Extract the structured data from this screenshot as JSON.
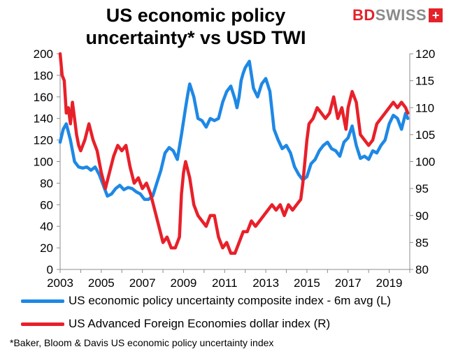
{
  "header": {
    "title_line1": "US economic policy",
    "title_line2": "uncertainty* vs USD TWI"
  },
  "logo": {
    "part1": "BD",
    "part2": "SWISS",
    "badge": "+"
  },
  "colors": {
    "blue": "#1e88e5",
    "red": "#e8202a"
  },
  "footnote": "*Baker, Bloom & Davis US economic policy uncertainty index",
  "chart_data": {
    "type": "line",
    "x_ticks": [
      "2003",
      "2005",
      "2007",
      "2009",
      "2011",
      "2013",
      "2015",
      "2017",
      "2019"
    ],
    "xlim": [
      2003,
      2020
    ],
    "left_axis": {
      "ticks": [
        0,
        20,
        40,
        60,
        80,
        100,
        120,
        140,
        160,
        180,
        200
      ],
      "ylim": [
        0,
        200
      ]
    },
    "right_axis": {
      "ticks": [
        80,
        85,
        90,
        95,
        100,
        105,
        110,
        115,
        120
      ],
      "ylim": [
        80,
        120
      ]
    },
    "grid": false,
    "legend_position": "bottom",
    "series": [
      {
        "name": "US economic policy uncertainty composite index - 6m avg (L)",
        "axis": "left",
        "color": "#1e88e5",
        "x": [
          2003.0,
          2003.15,
          2003.3,
          2003.5,
          2003.7,
          2003.9,
          2004.1,
          2004.3,
          2004.5,
          2004.7,
          2004.9,
          2005.1,
          2005.3,
          2005.5,
          2005.7,
          2005.9,
          2006.1,
          2006.3,
          2006.5,
          2006.7,
          2006.9,
          2007.1,
          2007.3,
          2007.5,
          2007.7,
          2007.9,
          2008.1,
          2008.3,
          2008.5,
          2008.7,
          2008.9,
          2009.1,
          2009.2,
          2009.3,
          2009.5,
          2009.7,
          2009.9,
          2010.1,
          2010.3,
          2010.5,
          2010.7,
          2010.9,
          2011.1,
          2011.3,
          2011.5,
          2011.6,
          2011.7,
          2011.8,
          2011.9,
          2012.0,
          2012.2,
          2012.4,
          2012.6,
          2012.8,
          2013.0,
          2013.2,
          2013.4,
          2013.6,
          2013.8,
          2014.0,
          2014.2,
          2014.4,
          2014.6,
          2014.8,
          2015.0,
          2015.2,
          2015.4,
          2015.6,
          2015.8,
          2016.0,
          2016.2,
          2016.4,
          2016.6,
          2016.8,
          2017.0,
          2017.2,
          2017.4,
          2017.6,
          2017.8,
          2018.0,
          2018.2,
          2018.4,
          2018.6,
          2018.8,
          2019.0,
          2019.2,
          2019.4,
          2019.6,
          2019.8,
          2019.9
        ],
        "values": [
          118,
          130,
          135,
          120,
          100,
          95,
          94,
          95,
          92,
          95,
          88,
          78,
          68,
          70,
          75,
          78,
          74,
          76,
          75,
          72,
          70,
          65,
          65,
          68,
          80,
          92,
          108,
          113,
          110,
          102,
          125,
          150,
          162,
          172,
          160,
          140,
          138,
          132,
          140,
          138,
          140,
          155,
          165,
          170,
          158,
          150,
          160,
          175,
          182,
          187,
          193,
          168,
          160,
          172,
          177,
          165,
          130,
          120,
          112,
          115,
          108,
          95,
          88,
          83,
          86,
          98,
          102,
          110,
          115,
          118,
          112,
          110,
          105,
          118,
          122,
          133,
          115,
          103,
          105,
          102,
          110,
          108,
          115,
          120,
          135,
          143,
          140,
          130,
          145,
          140
        ]
      },
      {
        "name": "US Advanced Foreign Economies dollar index (R)",
        "axis": "right",
        "color": "#e8202a",
        "x": [
          2003.0,
          2003.1,
          2003.2,
          2003.3,
          2003.4,
          2003.5,
          2003.6,
          2003.7,
          2003.8,
          2003.9,
          2004.0,
          2004.2,
          2004.4,
          2004.6,
          2004.8,
          2005.0,
          2005.2,
          2005.4,
          2005.6,
          2005.8,
          2006.0,
          2006.2,
          2006.4,
          2006.6,
          2006.8,
          2007.0,
          2007.2,
          2007.4,
          2007.6,
          2007.8,
          2008.0,
          2008.2,
          2008.4,
          2008.6,
          2008.8,
          2008.9,
          2009.0,
          2009.1,
          2009.3,
          2009.5,
          2009.7,
          2009.9,
          2010.1,
          2010.3,
          2010.5,
          2010.7,
          2010.9,
          2011.1,
          2011.3,
          2011.5,
          2011.7,
          2011.9,
          2012.1,
          2012.3,
          2012.5,
          2012.7,
          2012.9,
          2013.1,
          2013.3,
          2013.5,
          2013.7,
          2013.9,
          2014.1,
          2014.3,
          2014.5,
          2014.7,
          2014.8,
          2014.9,
          2015.0,
          2015.1,
          2015.3,
          2015.5,
          2015.7,
          2015.9,
          2016.1,
          2016.3,
          2016.5,
          2016.7,
          2016.9,
          2017.0,
          2017.2,
          2017.4,
          2017.6,
          2017.8,
          2018.0,
          2018.2,
          2018.4,
          2018.6,
          2018.8,
          2019.0,
          2019.2,
          2019.4,
          2019.6,
          2019.8,
          2019.9
        ],
        "values": [
          120,
          116,
          115,
          109,
          110,
          107,
          111,
          108,
          105,
          103,
          102,
          104,
          107,
          104,
          102,
          98,
          95,
          98,
          101,
          103,
          102,
          103,
          99,
          96,
          97,
          95,
          96,
          94,
          91,
          88,
          85,
          86,
          84,
          84,
          86,
          94,
          98,
          100,
          97,
          92,
          90,
          89,
          88,
          90,
          90,
          86,
          84,
          85,
          83,
          83,
          85,
          87,
          87,
          89,
          88,
          89,
          90,
          91,
          92,
          91,
          92,
          90,
          92,
          91,
          92,
          93,
          96,
          100,
          104,
          107,
          108,
          110,
          109,
          108,
          109,
          112,
          108,
          110,
          106,
          110,
          113,
          111,
          105,
          104,
          103,
          104,
          107,
          108,
          109,
          110,
          111,
          110,
          111,
          110,
          109
        ]
      }
    ]
  }
}
